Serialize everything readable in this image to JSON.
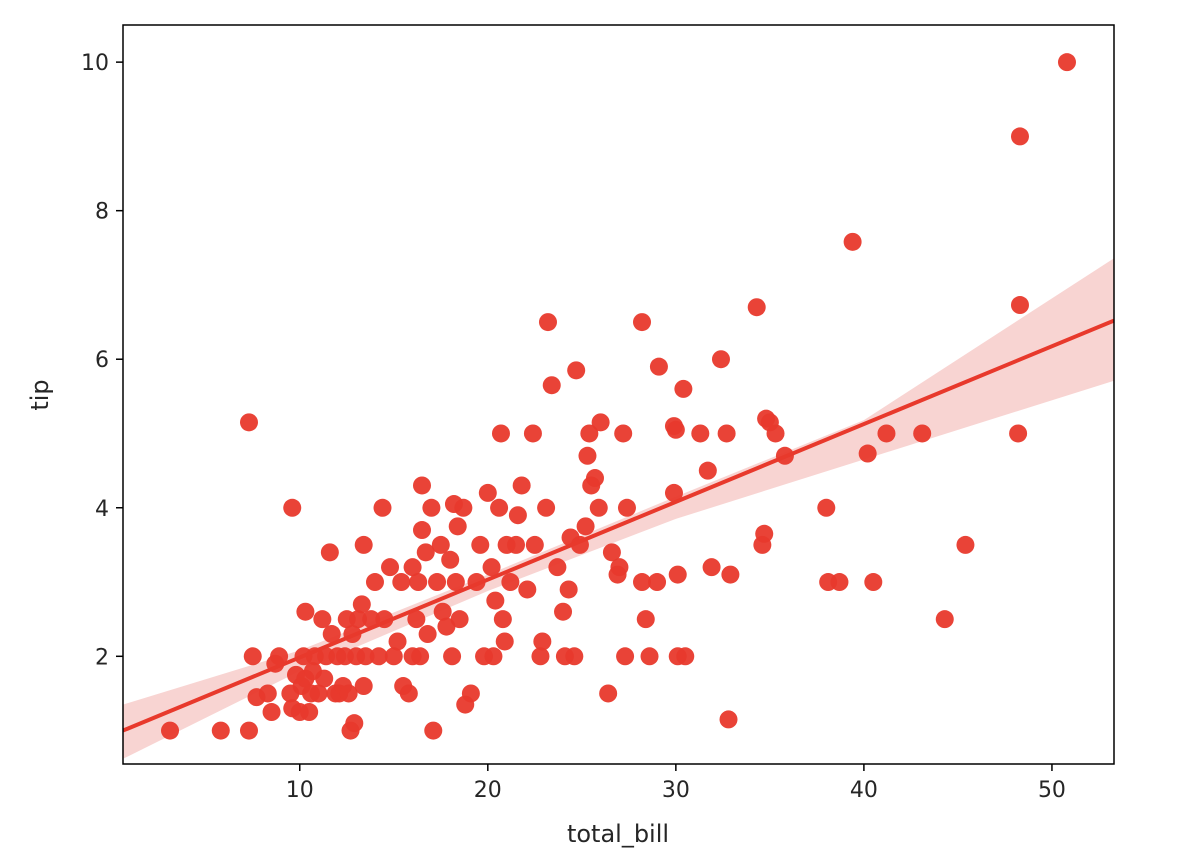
{
  "chart_data": {
    "type": "scatter",
    "title": "",
    "xlabel": "total_bill",
    "ylabel": "tip",
    "xlim": [
      0.6,
      53.3
    ],
    "ylim": [
      0.55,
      10.5
    ],
    "xticks": [
      10,
      20,
      30,
      40,
      50
    ],
    "yticks": [
      2,
      4,
      6,
      8,
      10
    ],
    "grid": false,
    "legend": "none",
    "colors": {
      "points": "#e8392c",
      "line": "#e8392c",
      "band": "#f5c6c3",
      "axis": "#000000"
    },
    "regression": {
      "x": [
        0.6,
        53.3
      ],
      "y": [
        1.0,
        6.52
      ]
    },
    "confidence_band": {
      "x": [
        0.6,
        10,
        20,
        30,
        40,
        53.3
      ],
      "lower": [
        0.62,
        1.8,
        2.88,
        3.85,
        4.65,
        5.71
      ],
      "upper": [
        1.35,
        2.08,
        3.1,
        4.15,
        5.18,
        7.36
      ]
    },
    "points": [
      [
        3.1,
        1.0
      ],
      [
        5.8,
        1.0
      ],
      [
        7.3,
        1.0
      ],
      [
        7.3,
        5.15
      ],
      [
        7.5,
        2.0
      ],
      [
        7.7,
        1.45
      ],
      [
        8.3,
        1.5
      ],
      [
        8.5,
        1.25
      ],
      [
        8.7,
        1.9
      ],
      [
        8.9,
        2.0
      ],
      [
        9.6,
        4.0
      ],
      [
        9.5,
        1.5
      ],
      [
        9.6,
        1.3
      ],
      [
        9.8,
        1.75
      ],
      [
        10.0,
        1.25
      ],
      [
        10.1,
        1.6
      ],
      [
        10.2,
        2.0
      ],
      [
        10.3,
        2.6
      ],
      [
        10.3,
        1.7
      ],
      [
        10.5,
        1.25
      ],
      [
        10.6,
        1.5
      ],
      [
        10.7,
        1.8
      ],
      [
        10.8,
        2.0
      ],
      [
        11.0,
        1.5
      ],
      [
        11.2,
        2.5
      ],
      [
        11.3,
        1.7
      ],
      [
        11.4,
        2.0
      ],
      [
        11.6,
        3.4
      ],
      [
        11.7,
        2.3
      ],
      [
        11.9,
        1.5
      ],
      [
        12.0,
        2.0
      ],
      [
        12.1,
        1.5
      ],
      [
        12.3,
        1.6
      ],
      [
        12.4,
        2.0
      ],
      [
        12.5,
        2.5
      ],
      [
        12.6,
        1.5
      ],
      [
        12.7,
        1.0
      ],
      [
        12.8,
        2.3
      ],
      [
        12.9,
        1.1
      ],
      [
        13.0,
        2.0
      ],
      [
        13.1,
        2.5
      ],
      [
        13.3,
        2.7
      ],
      [
        13.4,
        3.5
      ],
      [
        13.4,
        1.6
      ],
      [
        13.5,
        2.0
      ],
      [
        13.8,
        2.5
      ],
      [
        14.0,
        3.0
      ],
      [
        14.2,
        2.0
      ],
      [
        14.4,
        4.0
      ],
      [
        14.5,
        2.5
      ],
      [
        14.8,
        3.2
      ],
      [
        15.0,
        2.0
      ],
      [
        15.2,
        2.2
      ],
      [
        15.4,
        3.0
      ],
      [
        15.5,
        1.6
      ],
      [
        15.8,
        1.5
      ],
      [
        16.0,
        2.0
      ],
      [
        16.0,
        3.2
      ],
      [
        16.2,
        2.5
      ],
      [
        16.3,
        3.0
      ],
      [
        16.4,
        2.0
      ],
      [
        16.5,
        3.7
      ],
      [
        16.5,
        4.3
      ],
      [
        16.7,
        3.4
      ],
      [
        16.8,
        2.3
      ],
      [
        17.0,
        4.0
      ],
      [
        17.1,
        1.0
      ],
      [
        17.3,
        3.0
      ],
      [
        17.5,
        3.5
      ],
      [
        17.6,
        2.6
      ],
      [
        17.8,
        2.4
      ],
      [
        18.0,
        3.3
      ],
      [
        18.1,
        2.0
      ],
      [
        18.2,
        4.05
      ],
      [
        18.3,
        3.0
      ],
      [
        18.4,
        3.75
      ],
      [
        18.5,
        2.5
      ],
      [
        18.7,
        4.0
      ],
      [
        18.8,
        1.35
      ],
      [
        19.1,
        1.5
      ],
      [
        19.4,
        3.0
      ],
      [
        19.6,
        3.5
      ],
      [
        19.8,
        2.0
      ],
      [
        20.0,
        4.2
      ],
      [
        20.2,
        3.2
      ],
      [
        20.3,
        2.0
      ],
      [
        20.4,
        2.75
      ],
      [
        20.6,
        4.0
      ],
      [
        20.7,
        5.0
      ],
      [
        20.8,
        2.5
      ],
      [
        20.9,
        2.2
      ],
      [
        21.0,
        3.5
      ],
      [
        21.2,
        3.0
      ],
      [
        21.5,
        3.5
      ],
      [
        21.6,
        3.9
      ],
      [
        21.8,
        4.3
      ],
      [
        22.1,
        2.9
      ],
      [
        22.4,
        5.0
      ],
      [
        22.5,
        3.5
      ],
      [
        22.8,
        2.0
      ],
      [
        22.9,
        2.2
      ],
      [
        23.1,
        4.0
      ],
      [
        23.2,
        6.5
      ],
      [
        23.4,
        5.65
      ],
      [
        23.7,
        3.2
      ],
      [
        24.0,
        2.6
      ],
      [
        24.1,
        2.0
      ],
      [
        24.3,
        2.9
      ],
      [
        24.4,
        3.6
      ],
      [
        24.6,
        2.0
      ],
      [
        24.7,
        5.85
      ],
      [
        24.9,
        3.5
      ],
      [
        25.2,
        3.75
      ],
      [
        25.3,
        4.7
      ],
      [
        25.4,
        5.0
      ],
      [
        25.5,
        4.3
      ],
      [
        25.7,
        4.4
      ],
      [
        25.9,
        4.0
      ],
      [
        26.0,
        5.15
      ],
      [
        26.4,
        1.5
      ],
      [
        26.6,
        3.4
      ],
      [
        26.9,
        3.1
      ],
      [
        27.0,
        3.2
      ],
      [
        27.2,
        5.0
      ],
      [
        27.3,
        2.0
      ],
      [
        27.4,
        4.0
      ],
      [
        28.2,
        6.5
      ],
      [
        28.2,
        3.0
      ],
      [
        28.4,
        2.5
      ],
      [
        28.6,
        2.0
      ],
      [
        29.0,
        3.0
      ],
      [
        29.1,
        5.9
      ],
      [
        29.9,
        4.2
      ],
      [
        29.9,
        5.1
      ],
      [
        30.0,
        5.05
      ],
      [
        30.1,
        2.0
      ],
      [
        30.1,
        3.1
      ],
      [
        30.4,
        5.6
      ],
      [
        30.5,
        2.0
      ],
      [
        31.3,
        5.0
      ],
      [
        31.7,
        4.5
      ],
      [
        31.9,
        3.2
      ],
      [
        32.4,
        6.0
      ],
      [
        32.7,
        5.0
      ],
      [
        32.8,
        1.15
      ],
      [
        32.9,
        3.1
      ],
      [
        34.3,
        6.7
      ],
      [
        34.6,
        3.5
      ],
      [
        34.7,
        3.65
      ],
      [
        34.8,
        5.2
      ],
      [
        35.0,
        5.15
      ],
      [
        35.3,
        5.0
      ],
      [
        35.8,
        4.7
      ],
      [
        38.0,
        4.0
      ],
      [
        38.1,
        3.0
      ],
      [
        38.7,
        3.0
      ],
      [
        39.4,
        7.58
      ],
      [
        40.2,
        4.73
      ],
      [
        40.5,
        3.0
      ],
      [
        41.2,
        5.0
      ],
      [
        43.1,
        5.0
      ],
      [
        44.3,
        2.5
      ],
      [
        45.4,
        3.5
      ],
      [
        48.2,
        5.0
      ],
      [
        48.3,
        6.73
      ],
      [
        48.3,
        9.0
      ],
      [
        50.8,
        10.0
      ]
    ]
  }
}
